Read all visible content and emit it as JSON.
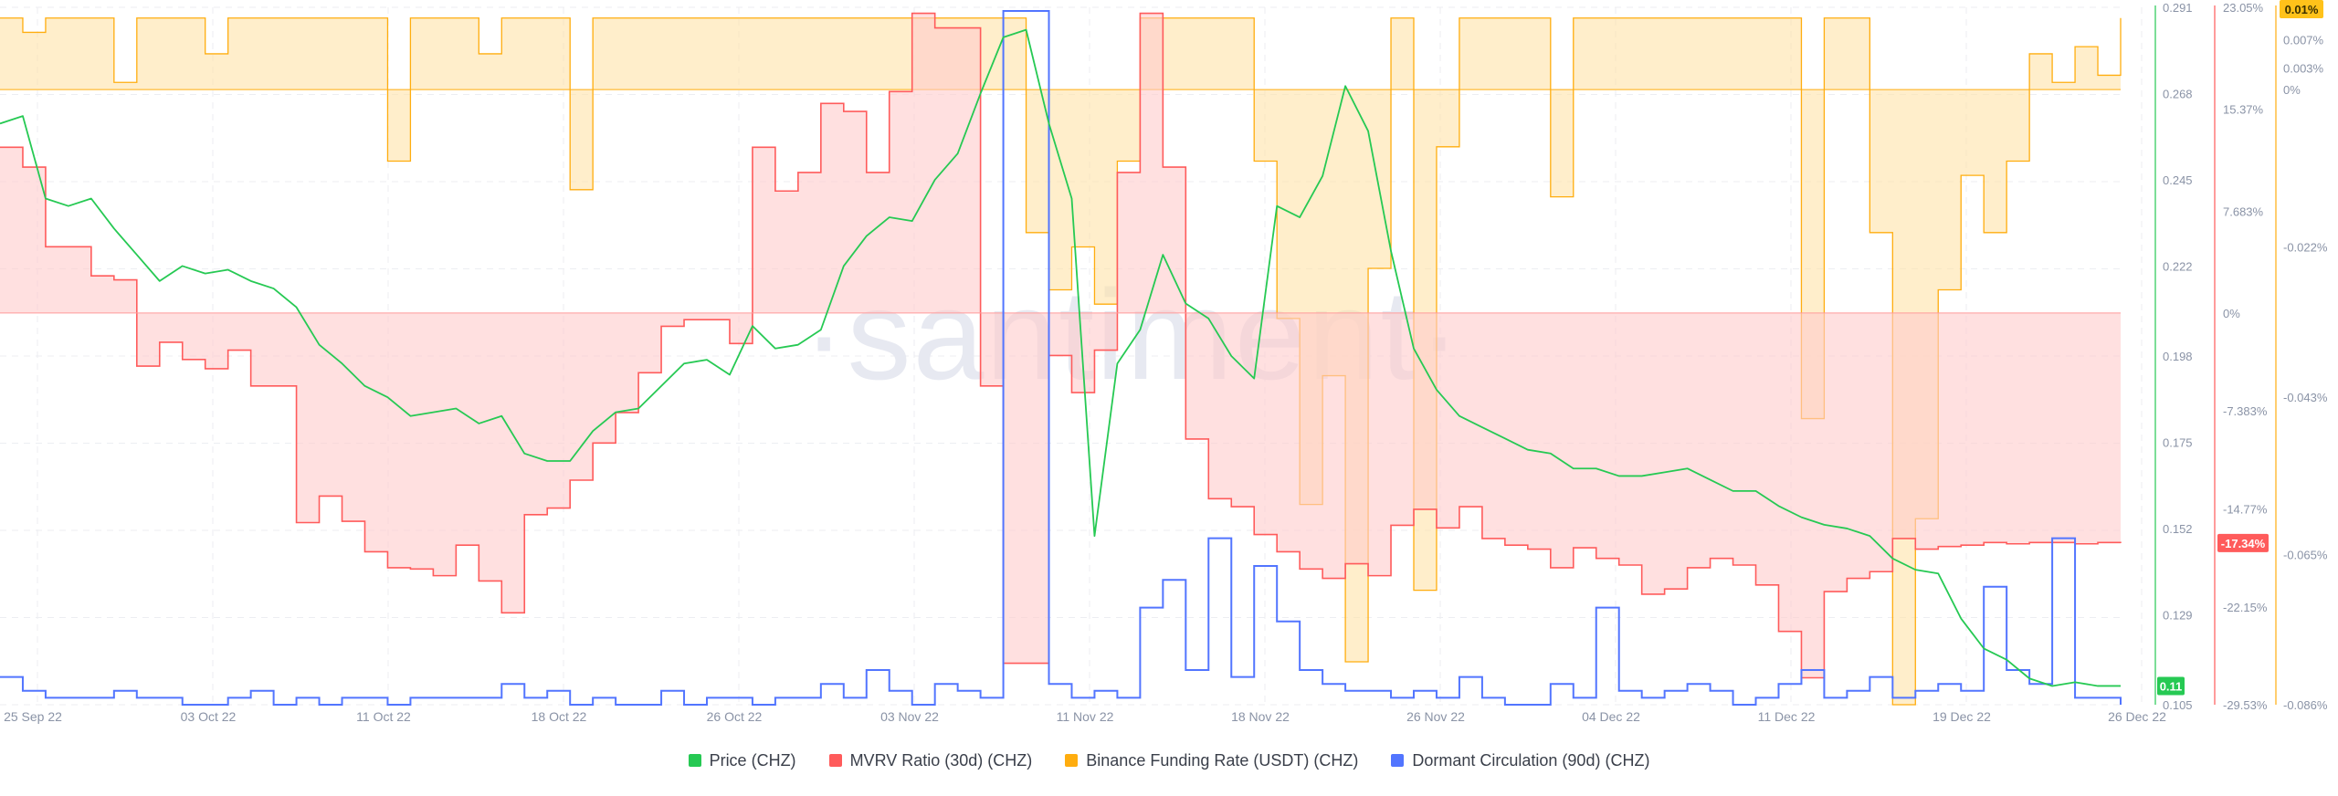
{
  "watermark": "·santiment·",
  "legend": [
    {
      "label": "Price (CHZ)",
      "color": "#26c953"
    },
    {
      "label": "MVRV Ratio (30d) (CHZ)",
      "color": "#ff5b5b"
    },
    {
      "label": "Binance Funding Rate (USDT) (CHZ)",
      "color": "#ffad0f"
    },
    {
      "label": "Dormant Circulation (90d) (CHZ)",
      "color": "#5275ff"
    }
  ],
  "chart_data": {
    "type": "line",
    "grid": true,
    "legend_position": "bottom",
    "x_tick_labels": [
      "25 Sep 22",
      "03 Oct 22",
      "11 Oct 22",
      "18 Oct 22",
      "26 Oct 22",
      "03 Nov 22",
      "11 Nov 22",
      "18 Nov 22",
      "26 Nov 22",
      "04 Dec 22",
      "11 Dec 22",
      "19 Dec 22",
      "26 Dec 22"
    ],
    "price_axis": {
      "ticks": [
        "0.291",
        "0.268",
        "0.245",
        "0.222",
        "0.198",
        "0.175",
        "0.152",
        "0.129",
        "0.105"
      ],
      "range": [
        0.105,
        0.291
      ],
      "current": "0.11"
    },
    "mvrv_axis": {
      "ticks": [
        "23.05%",
        "15.37%",
        "7.683%",
        "0%",
        "-7.383%",
        "-14.77%",
        "-22.15%",
        "-29.53%"
      ],
      "range": [
        -29.53,
        23.05
      ],
      "current": "-17.34%"
    },
    "funding_axis": {
      "ticks": [
        "0.007%",
        "0.003%",
        "0%",
        "-0.022%",
        "-0.043%",
        "-0.065%",
        "-0.086%"
      ],
      "range": [
        -0.086,
        0.0115
      ],
      "current": "0.01%"
    },
    "series": [
      {
        "name": "Price (CHZ)",
        "color": "#26c953",
        "x": [
          0,
          1,
          2,
          3,
          4,
          5,
          6,
          7,
          8,
          9,
          10,
          11,
          12,
          13,
          14,
          15,
          16,
          17,
          18,
          19,
          20,
          21,
          22,
          23,
          24,
          25,
          26,
          27,
          28,
          29,
          30,
          31,
          32,
          33,
          34,
          35,
          36,
          37,
          38,
          39,
          40,
          41,
          42,
          43,
          44,
          45,
          46,
          47,
          48,
          49,
          50,
          51,
          52,
          53,
          54,
          55,
          56,
          57,
          58,
          59,
          60,
          61,
          62,
          63,
          64,
          65,
          66,
          67,
          68,
          69,
          70,
          71,
          72,
          73,
          74,
          75,
          76,
          77,
          78,
          79,
          80,
          81,
          82,
          83,
          84,
          85,
          86,
          87,
          88,
          89,
          90,
          91,
          92,
          93
        ],
        "values": [
          0.26,
          0.262,
          0.24,
          0.238,
          0.24,
          0.232,
          0.225,
          0.218,
          0.222,
          0.22,
          0.221,
          0.218,
          0.216,
          0.211,
          0.201,
          0.196,
          0.19,
          0.187,
          0.182,
          0.183,
          0.184,
          0.18,
          0.182,
          0.172,
          0.17,
          0.17,
          0.178,
          0.183,
          0.184,
          0.19,
          0.196,
          0.197,
          0.193,
          0.206,
          0.2,
          0.201,
          0.205,
          0.222,
          0.23,
          0.235,
          0.234,
          0.245,
          0.252,
          0.268,
          0.283,
          0.285,
          0.26,
          0.24,
          0.15,
          0.196,
          0.205,
          0.225,
          0.212,
          0.208,
          0.198,
          0.192,
          0.238,
          0.235,
          0.246,
          0.27,
          0.258,
          0.226,
          0.2,
          0.189,
          0.182,
          0.179,
          0.176,
          0.173,
          0.172,
          0.168,
          0.168,
          0.166,
          0.166,
          0.167,
          0.168,
          0.165,
          0.162,
          0.162,
          0.158,
          0.155,
          0.153,
          0.152,
          0.15,
          0.144,
          0.141,
          0.14,
          0.128,
          0.12,
          0.117,
          0.112,
          0.11,
          0.111,
          0.11,
          0.11
        ]
      },
      {
        "name": "MVRV Ratio (30d) (CHZ)",
        "color": "#ff5b5b",
        "x": [
          0,
          1,
          2,
          3,
          4,
          5,
          6,
          7,
          8,
          9,
          10,
          11,
          12,
          13,
          14,
          15,
          16,
          17,
          18,
          19,
          20,
          21,
          22,
          23,
          24,
          25,
          26,
          27,
          28,
          29,
          30,
          31,
          32,
          33,
          34,
          35,
          36,
          37,
          38,
          39,
          40,
          41,
          42,
          43,
          44,
          45,
          46,
          47,
          48,
          49,
          50,
          51,
          52,
          53,
          54,
          55,
          56,
          57,
          58,
          59,
          60,
          61,
          62,
          63,
          64,
          65,
          66,
          67,
          68,
          69,
          70,
          71,
          72,
          73,
          74,
          75,
          76,
          77,
          78,
          79,
          80,
          81,
          82,
          83,
          84,
          85,
          86,
          87,
          88,
          89,
          90,
          91,
          92,
          93
        ],
        "values": [
          12.5,
          11.0,
          5.0,
          5.0,
          2.8,
          2.5,
          -4.0,
          -2.2,
          -3.5,
          -4.2,
          -2.8,
          -5.5,
          -5.5,
          -15.8,
          -13.8,
          -15.7,
          -18.0,
          -19.2,
          -19.3,
          -19.8,
          -17.5,
          -20.2,
          -22.6,
          -15.2,
          -14.7,
          -12.6,
          -9.8,
          -7.5,
          -4.5,
          -1.0,
          -0.5,
          -0.5,
          -2.3,
          12.5,
          9.2,
          10.6,
          15.8,
          15.2,
          10.6,
          16.7,
          22.6,
          21.5,
          21.5,
          -5.5,
          -26.4,
          -26.4,
          -3.2,
          -6.0,
          -2.8,
          10.6,
          22.6,
          11.0,
          -9.5,
          -14.0,
          -14.6,
          -16.7,
          -18.0,
          -19.3,
          -20.0,
          -18.9,
          -19.8,
          -16.0,
          -14.8,
          -16.2,
          -14.6,
          -17.0,
          -17.5,
          -17.8,
          -19.2,
          -17.7,
          -18.5,
          -19.0,
          -21.2,
          -20.8,
          -19.2,
          -18.5,
          -19.0,
          -20.5,
          -24.0,
          -27.5,
          -21.0,
          -20.0,
          -19.5,
          -17.0,
          -17.8,
          -17.6,
          -17.5,
          -17.3,
          -17.4,
          -17.3,
          -17.3,
          -17.4,
          -17.3,
          -17.34
        ]
      },
      {
        "name": "Binance Funding Rate (USDT) (CHZ)",
        "color": "#ffad0f",
        "x": [
          0,
          1,
          2,
          3,
          4,
          5,
          6,
          7,
          8,
          9,
          10,
          11,
          12,
          13,
          14,
          15,
          16,
          17,
          18,
          19,
          20,
          21,
          22,
          23,
          24,
          25,
          26,
          27,
          28,
          29,
          30,
          31,
          32,
          33,
          34,
          35,
          36,
          37,
          38,
          39,
          40,
          41,
          42,
          43,
          44,
          45,
          46,
          47,
          48,
          49,
          50,
          51,
          52,
          53,
          54,
          55,
          56,
          57,
          58,
          59,
          60,
          61,
          62,
          63,
          64,
          65,
          66,
          67,
          68,
          69,
          70,
          71,
          72,
          73,
          74,
          75,
          76,
          77,
          78,
          79,
          80,
          81,
          82,
          83,
          84,
          85,
          86,
          87,
          88,
          89,
          90,
          91,
          92,
          93
        ],
        "values": [
          0.01,
          0.008,
          0.01,
          0.01,
          0.01,
          0.001,
          0.01,
          0.01,
          0.01,
          0.005,
          0.01,
          0.01,
          0.01,
          0.01,
          0.01,
          0.01,
          0.01,
          -0.01,
          0.01,
          0.01,
          0.01,
          0.005,
          0.01,
          0.01,
          0.01,
          -0.014,
          0.01,
          0.01,
          0.01,
          0.01,
          0.01,
          0.01,
          0.01,
          0.01,
          0.01,
          0.01,
          0.01,
          0.01,
          0.01,
          0.01,
          0.01,
          0.01,
          0.01,
          0.01,
          0.01,
          -0.02,
          -0.028,
          -0.022,
          -0.03,
          -0.01,
          0.01,
          0.01,
          0.01,
          0.01,
          0.01,
          -0.01,
          -0.032,
          -0.058,
          -0.04,
          -0.08,
          -0.025,
          0.01,
          -0.07,
          -0.008,
          0.01,
          0.01,
          0.01,
          0.01,
          -0.015,
          0.01,
          0.01,
          0.01,
          0.01,
          0.01,
          0.01,
          0.01,
          0.01,
          0.01,
          0.01,
          -0.046,
          0.01,
          0.01,
          -0.02,
          -0.086,
          -0.06,
          -0.028,
          -0.012,
          -0.02,
          -0.01,
          0.005,
          0.001,
          0.006,
          0.002,
          0.01
        ]
      },
      {
        "name": "Dormant Circulation (90d) (CHZ)",
        "color": "#5275ff",
        "x": [
          0,
          1,
          2,
          3,
          4,
          5,
          6,
          7,
          8,
          9,
          10,
          11,
          12,
          13,
          14,
          15,
          16,
          17,
          18,
          19,
          20,
          21,
          22,
          23,
          24,
          25,
          26,
          27,
          28,
          29,
          30,
          31,
          32,
          33,
          34,
          35,
          36,
          37,
          38,
          39,
          40,
          41,
          42,
          43,
          44,
          45,
          46,
          47,
          48,
          49,
          50,
          51,
          52,
          53,
          54,
          55,
          56,
          57,
          58,
          59,
          60,
          61,
          62,
          63,
          64,
          65,
          66,
          67,
          68,
          69,
          70,
          71,
          72,
          73,
          74,
          75,
          76,
          77,
          78,
          79,
          80,
          81,
          82,
          83,
          84,
          85,
          86,
          87,
          88,
          89,
          90,
          91,
          92,
          93
        ],
        "values": [
          4,
          2,
          1,
          1,
          1,
          2,
          1,
          1,
          0,
          0,
          1,
          2,
          0,
          1,
          0,
          1,
          1,
          0,
          1,
          1,
          1,
          1,
          3,
          1,
          2,
          0,
          1,
          0,
          0,
          2,
          0,
          1,
          1,
          0,
          1,
          1,
          3,
          1,
          5,
          2,
          0,
          3,
          2,
          1,
          100,
          100,
          3,
          1,
          2,
          1,
          14,
          18,
          5,
          24,
          4,
          20,
          12,
          5,
          3,
          2,
          2,
          1,
          2,
          1,
          4,
          1,
          0,
          0,
          3,
          1,
          14,
          2,
          1,
          2,
          3,
          2,
          0,
          1,
          3,
          5,
          1,
          2,
          4,
          1,
          2,
          3,
          2,
          17,
          5,
          3,
          24,
          1,
          1,
          0
        ]
      }
    ]
  }
}
